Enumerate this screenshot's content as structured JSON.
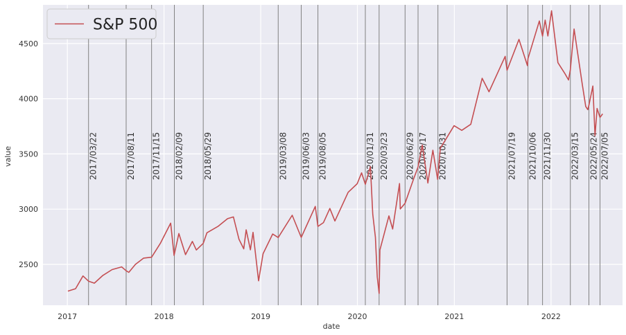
{
  "chart_data": {
    "type": "line",
    "xlabel": "date",
    "ylabel": "value",
    "x_ticks": [
      "2017",
      "2018",
      "2019",
      "2020",
      "2021",
      "2022"
    ],
    "y_ticks": [
      "2500",
      "3000",
      "3500",
      "4000",
      "4500"
    ],
    "ylim": [
      2130,
      4850
    ],
    "xlim": [
      "2016-10-01",
      "2022-09-28"
    ],
    "grid": true,
    "legend_position": "top-left",
    "colors": {
      "series": "#c44e52",
      "event_line": "#808080",
      "plot_bg": "#eaeaf2",
      "grid": "#ffffff"
    },
    "series": [
      {
        "name": "S&P 500",
        "points": [
          [
            "2017-01-03",
            2258
          ],
          [
            "2017-02-01",
            2280
          ],
          [
            "2017-03-01",
            2395
          ],
          [
            "2017-03-22",
            2348
          ],
          [
            "2017-04-13",
            2330
          ],
          [
            "2017-05-15",
            2400
          ],
          [
            "2017-06-19",
            2453
          ],
          [
            "2017-07-25",
            2477
          ],
          [
            "2017-08-11",
            2442
          ],
          [
            "2017-08-21",
            2428
          ],
          [
            "2017-09-15",
            2500
          ],
          [
            "2017-10-16",
            2557
          ],
          [
            "2017-11-15",
            2565
          ],
          [
            "2017-12-18",
            2690
          ],
          [
            "2018-01-26",
            2873
          ],
          [
            "2018-02-08",
            2581
          ],
          [
            "2018-02-26",
            2779
          ],
          [
            "2018-03-23",
            2588
          ],
          [
            "2018-04-18",
            2708
          ],
          [
            "2018-05-03",
            2630
          ],
          [
            "2018-05-29",
            2690
          ],
          [
            "2018-06-12",
            2786
          ],
          [
            "2018-07-25",
            2846
          ],
          [
            "2018-08-29",
            2914
          ],
          [
            "2018-09-20",
            2930
          ],
          [
            "2018-10-11",
            2728
          ],
          [
            "2018-10-29",
            2641
          ],
          [
            "2018-11-07",
            2813
          ],
          [
            "2018-11-23",
            2632
          ],
          [
            "2018-12-03",
            2790
          ],
          [
            "2018-12-24",
            2351
          ],
          [
            "2019-01-10",
            2597
          ],
          [
            "2019-02-15",
            2775
          ],
          [
            "2019-03-08",
            2743
          ],
          [
            "2019-04-30",
            2945
          ],
          [
            "2019-06-03",
            2744
          ],
          [
            "2019-07-26",
            3025
          ],
          [
            "2019-08-05",
            2844
          ],
          [
            "2019-08-26",
            2878
          ],
          [
            "2019-09-19",
            3006
          ],
          [
            "2019-10-08",
            2893
          ],
          [
            "2019-11-27",
            3153
          ],
          [
            "2019-12-31",
            3230
          ],
          [
            "2020-01-17",
            3329
          ],
          [
            "2020-01-31",
            3225
          ],
          [
            "2020-02-19",
            3386
          ],
          [
            "2020-02-28",
            2954
          ],
          [
            "2020-03-09",
            2746
          ],
          [
            "2020-03-16",
            2386
          ],
          [
            "2020-03-23",
            2237
          ],
          [
            "2020-03-26",
            2630
          ],
          [
            "2020-04-29",
            2939
          ],
          [
            "2020-05-13",
            2820
          ],
          [
            "2020-06-08",
            3232
          ],
          [
            "2020-06-11",
            3002
          ],
          [
            "2020-06-29",
            3053
          ],
          [
            "2020-07-31",
            3271
          ],
          [
            "2020-08-17",
            3381
          ],
          [
            "2020-09-02",
            3580
          ],
          [
            "2020-09-23",
            3237
          ],
          [
            "2020-10-12",
            3534
          ],
          [
            "2020-10-30",
            3270
          ],
          [
            "2020-11-09",
            3550
          ],
          [
            "2020-12-31",
            3756
          ],
          [
            "2021-01-29",
            3714
          ],
          [
            "2021-03-04",
            3768
          ],
          [
            "2021-04-16",
            4185
          ],
          [
            "2021-05-12",
            4063
          ],
          [
            "2021-07-12",
            4384
          ],
          [
            "2021-07-19",
            4258
          ],
          [
            "2021-09-02",
            4537
          ],
          [
            "2021-10-04",
            4300
          ],
          [
            "2021-10-06",
            4363
          ],
          [
            "2021-11-18",
            4704
          ],
          [
            "2021-11-30",
            4567
          ],
          [
            "2021-12-10",
            4712
          ],
          [
            "2021-12-20",
            4568
          ],
          [
            "2022-01-03",
            4796
          ],
          [
            "2022-01-27",
            4326
          ],
          [
            "2022-02-23",
            4225
          ],
          [
            "2022-03-08",
            4170
          ],
          [
            "2022-03-15",
            4262
          ],
          [
            "2022-03-29",
            4631
          ],
          [
            "2022-04-29",
            4132
          ],
          [
            "2022-05-12",
            3930
          ],
          [
            "2022-05-20",
            3901
          ],
          [
            "2022-05-24",
            3941
          ],
          [
            "2022-06-08",
            4115
          ],
          [
            "2022-06-16",
            3666
          ],
          [
            "2022-06-24",
            3912
          ],
          [
            "2022-07-05",
            3831
          ],
          [
            "2022-07-15",
            3863
          ]
        ]
      }
    ],
    "event_lines": [
      "2017/03/22",
      "2017/08/11",
      "2017/11/15",
      "2018/02/09",
      "2018/05/29",
      "2019/03/08",
      "2019/06/03",
      "2019/08/05",
      "2020/01/31",
      "2020/03/23",
      "2020/06/29",
      "2020/08/17",
      "2020/10/31",
      "2021/07/19",
      "2021/10/06",
      "2021/11/30",
      "2022/03/15",
      "2022/05/24",
      "2022/07/05"
    ]
  }
}
